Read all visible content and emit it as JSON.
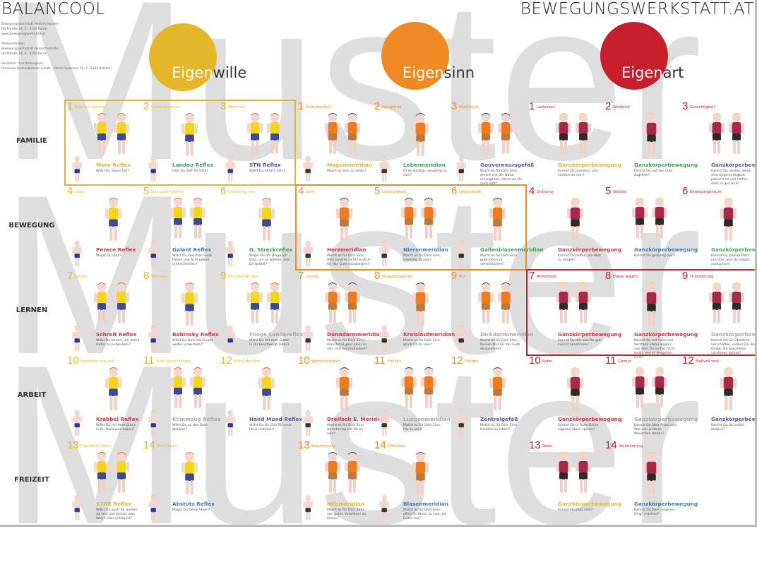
{
  "header": {
    "brand_left": "BALANCOOL",
    "brand_right": "BEWEGUNGSWERKSTATT.AT",
    "imprint": [
      "Bewegungswerkstatt Herbert Handler",
      "Dorfstraße 18, A - 6250 Kundl",
      "www.bewegungswerkstatt.at",
      "",
      "Medieninhaber:",
      "Bewegungswerkstatt Herbert Handler",
      "Dorfstraße 18, A - 6250 Kundl",
      "",
      "Hersteller / Herstellungsort:",
      "Druckerei Aschenbrenner GmbH., Untere Sparchen 50, A - 6330 Kufstein"
    ]
  },
  "watermark": "Muster",
  "colors": {
    "yellow": "#e5b62a",
    "orange": "#f08a24",
    "red": "#c41f2b",
    "green": "#3aa655",
    "purple": "#5b59a8",
    "blue": "#3a7cc0",
    "crimson": "#e0303a",
    "gray": "#a9a9a9"
  },
  "rows": [
    "FAMILIE",
    "BEWEGUNG",
    "LERNEN",
    "ARBEIT",
    "FREIZEIT"
  ],
  "groups": [
    {
      "prefix": "Eigen",
      "suffix": "wille",
      "color": "#e5b62a",
      "shirt": "#f2d51c",
      "shorts": "#3b4a9a",
      "items": [
        {
          "n": "1",
          "title": "Staunen können",
          "name": "Moro Reflex",
          "color": "#e5b62a",
          "q": "Willst Du Gutes tun?"
        },
        {
          "n": "2",
          "title": "Gutes erwarten",
          "name": "Landau Reflex",
          "color": "#3aa655",
          "q": "Hast Du Zeit für Dich?"
        },
        {
          "n": "3",
          "title": "Wahrheit",
          "name": "STN Reflex",
          "color": "#5b59a8",
          "q": "Willst Du ehrlich sein?"
        },
        {
          "n": "4",
          "title": "Liebe",
          "name": "Perece Reflex",
          "color": "#e0303a",
          "q": "Magst Du Dich?"
        },
        {
          "n": "5",
          "title": "Das Leben achten",
          "name": "Galant Reflex",
          "color": "#3a7cc0",
          "q": "Willst Du zwischen Spaß haben und Acht geben unterscheiden?"
        },
        {
          "n": "6",
          "title": "Umsichtig sein",
          "name": "G. Streckreflex",
          "color": "#3aa655",
          "q": "Magst Du die Dinge um Dich, um zu wählen, was Dir gefällt?"
        },
        {
          "n": "7",
          "title": "Lehren",
          "name": "Schreit Reflex",
          "color": "#e0303a",
          "q": "Willst Du lernen, um damit Gutes zu entwickeln?"
        },
        {
          "n": "8",
          "title": "Wachsen",
          "name": "Babinsky Reflex",
          "color": "#e0303a",
          "q": "Willst Du Dich mit Freude weiter entwickeln?"
        },
        {
          "n": "9",
          "title": "Beschwingt sein",
          "name": "Fliege Landereflex",
          "color": "#a9a9a9",
          "q": "Willst Du mit dem Guten in Dir beschwingt leben?"
        },
        {
          "n": "10",
          "title": "Harmonie mit sich",
          "name": "Krabbel Reflex",
          "color": "#e0303a",
          "q": "Willst Du mit dem Guten in Dir Harmonie haben?"
        },
        {
          "n": "11",
          "title": "Sich ziehen lassen",
          "name": "Klimmzug Reflex",
          "color": "#a9a9a9",
          "q": "Willst Du an das Gute glauben?"
        },
        {
          "n": "12",
          "title": "Still Gutes tun",
          "name": "Hand Mund Reflex",
          "color": "#5b59a8",
          "q": "Willst Du Dir Zeit für neue Ideen nehmen?"
        },
        {
          "n": "13",
          "title": "Eigenheit fühlen",
          "name": "STNR Reflex",
          "color": "#e5b62a",
          "q": "Willst Du auch für andere da sein und lernen, was falsch oder richtig ist?"
        },
        {
          "n": "14",
          "title": "Mein Raum",
          "name": "Abstütz Reflex",
          "color": "#3a7cc0",
          "q": "Magst Du Deine Ideen?"
        }
      ]
    },
    {
      "prefix": "Eigen",
      "suffix": "sinn",
      "color": "#f08a24",
      "shirt": "#f07a1c",
      "shorts": "#c0783a",
      "items": [
        {
          "n": "1",
          "title": "Zufriedenheit",
          "name": "Magenmeridian",
          "color": "#e5b62a",
          "q": "Macht es Sinn zu teilen?"
        },
        {
          "n": "2",
          "title": "Neugierde",
          "name": "Lebermeridian",
          "color": "#3aa655",
          "q": "Ist es wichtig, neugierig zu sein?"
        },
        {
          "n": "3",
          "title": "Ehrlichkeit",
          "name": "Gouverneursgefäß",
          "color": "#5b59a8",
          "q": "Macht es für Dich Sinn, ehrlich mit der Natur umzugehen, damit sie Dir auch hilft?"
        },
        {
          "n": "4",
          "title": "Licht",
          "name": "Herzmeridian",
          "color": "#e0303a",
          "q": "Macht es für Dich Sinn, Dein inneres Licht herzlich für das Gute einzusetzen?"
        },
        {
          "n": "5",
          "title": "Lebendigkeit",
          "name": "Nierenmeridian",
          "color": "#3a7cc0",
          "q": "Macht es für Dich Sinn, lebendig zu sein?"
        },
        {
          "n": "6",
          "title": "Lebenskraft",
          "name": "Gallenblasenmeridian",
          "color": "#3aa655",
          "q": "Macht es für Dich Sinn, gute Ideen zu verwirklichen?"
        },
        {
          "n": "7",
          "title": "Lernen",
          "name": "Dünndarmmeridian",
          "color": "#e0303a",
          "q": "Macht es für Dich Sinn, manchmal ganz klein zu sein und nachzudenken?"
        },
        {
          "n": "8",
          "title": "Vergebungskraft",
          "name": "Kreislaufmeridian",
          "color": "#e0303a",
          "q": "Macht es für Dich Sinn, glücklich zu sein?"
        },
        {
          "n": "9",
          "title": "Mut",
          "name": "Dickdarmmeridian",
          "color": "#a9a9a9",
          "q": "Macht es für Dich Sinn, Deinen Mut für das Gute einzusetzen?"
        },
        {
          "n": "10",
          "title": "Warmherzigkeit",
          "name": "Dreifach E. Meridian",
          "color": "#e0303a",
          "q": "Macht es für Dich Sinn, warmherzig mit Dir zu sein?"
        },
        {
          "n": "11",
          "title": "Freiheit",
          "name": "Lungenmeridian",
          "color": "#a9a9a9",
          "q": "Macht es für Dich Sinn, frei zu sein?"
        },
        {
          "n": "12",
          "title": "Frieden",
          "name": "Zentralgefäß",
          "color": "#5b59a8",
          "q": "Macht es für Dich Sinn, friedlich zu leben?"
        },
        {
          "n": "13",
          "title": "Bestimmung",
          "name": "Milzmeridian",
          "color": "#e5b62a",
          "q": "Macht es für Dich Sinn, von guten Vorbildern zu lernen?"
        },
        {
          "n": "14",
          "title": "Offenheit",
          "name": "Blasenmeridian",
          "color": "#3a7cc0",
          "q": "Macht es für Dich Sinn, offen für Ideen zu sein, die Gutes tun?"
        }
      ]
    },
    {
      "prefix": "Eigen",
      "suffix": "art",
      "color": "#c41f2b",
      "shirt": "#a8284a",
      "shorts": "#2b2b2b",
      "items": [
        {
          "n": "1",
          "title": "Loslassen",
          "name": "Ganzkörperbewegung",
          "color": "#e5b62a",
          "q": "Kannst Du loslassen und einfach da sein?"
        },
        {
          "n": "2",
          "title": "Weitblick",
          "name": "Ganzkörperbewegung",
          "color": "#3aa655",
          "q": "Kannst Du auf das Gute zugehen?"
        },
        {
          "n": "3",
          "title": "Gerechtigkeit",
          "name": "Ganzkörperbewegung",
          "color": "#5b59a8",
          "q": "Kannst Du warten, wenn eine Ungerechtigkeit passiert ist und hoffen, dass es gut wird?"
        },
        {
          "n": "4",
          "title": "Ordnung",
          "name": "Ganzkörperbewegung",
          "color": "#e0303a",
          "q": "Kannst Du helfen, die Welt zu mögen?"
        },
        {
          "n": "5",
          "title": "Geduld",
          "name": "Ganzkörperbewegung",
          "color": "#3a7cc0",
          "q": "Kannst Du geduldig sein?"
        },
        {
          "n": "6",
          "title": "Bewegungsraum",
          "name": "Ganzkörperbewegung",
          "color": "#3aa655",
          "q": "Kannst Du Deinen Platz und das, was Du magst, aussuchen?"
        },
        {
          "n": "7",
          "title": "Annehmen",
          "name": "Ganzkörperbewegung",
          "color": "#e0303a",
          "q": "Kannst Du das was Du gut kannst annehmen?"
        },
        {
          "n": "8",
          "title": "Etwas wagen",
          "name": "Ganzkörperbewegung",
          "color": "#e0303a",
          "q": "Kannst Du mit Herz und Verstand etwas wagen, von dem Du vorher nicht weißt, wie es ausgehen wird?"
        },
        {
          "n": "9",
          "title": "Orientierung",
          "name": "Ganzkörperbewegung",
          "color": "#a9a9a9",
          "q": "Kannst Du Dir Überblick verschaffen, sodass Du die Dinge, die geschehen verstehen kannst?"
        },
        {
          "n": "10",
          "title": "Ruhe",
          "name": "Ganzkörperbewegung",
          "color": "#e0303a",
          "q": "Kannst Du in Ruhe Deine eigenen Ideen spüren?"
        },
        {
          "n": "11",
          "title": "Demut",
          "name": "Ganzkörperbewegung",
          "color": "#a9a9a9",
          "q": "Kannst Du über Ärger und Wut von anderen Menschen stehen?"
        },
        {
          "n": "12",
          "title": "Maßvoll sein",
          "name": "Ganzkörperbewegung",
          "color": "#5b59a8",
          "q": "Kannst Du Du selbst bleiben?"
        },
        {
          "n": "13",
          "title": "Stolz",
          "name": "Ganzkörperbewegung",
          "color": "#e5b62a",
          "q": "Kannst Du stolz sein?"
        },
        {
          "n": "14",
          "title": "Veränderung",
          "name": "Ganzkörperbewegung",
          "color": "#3a7cc0",
          "q": "Kannst Du Dein „eigenes Ding\" machen?"
        }
      ]
    }
  ]
}
